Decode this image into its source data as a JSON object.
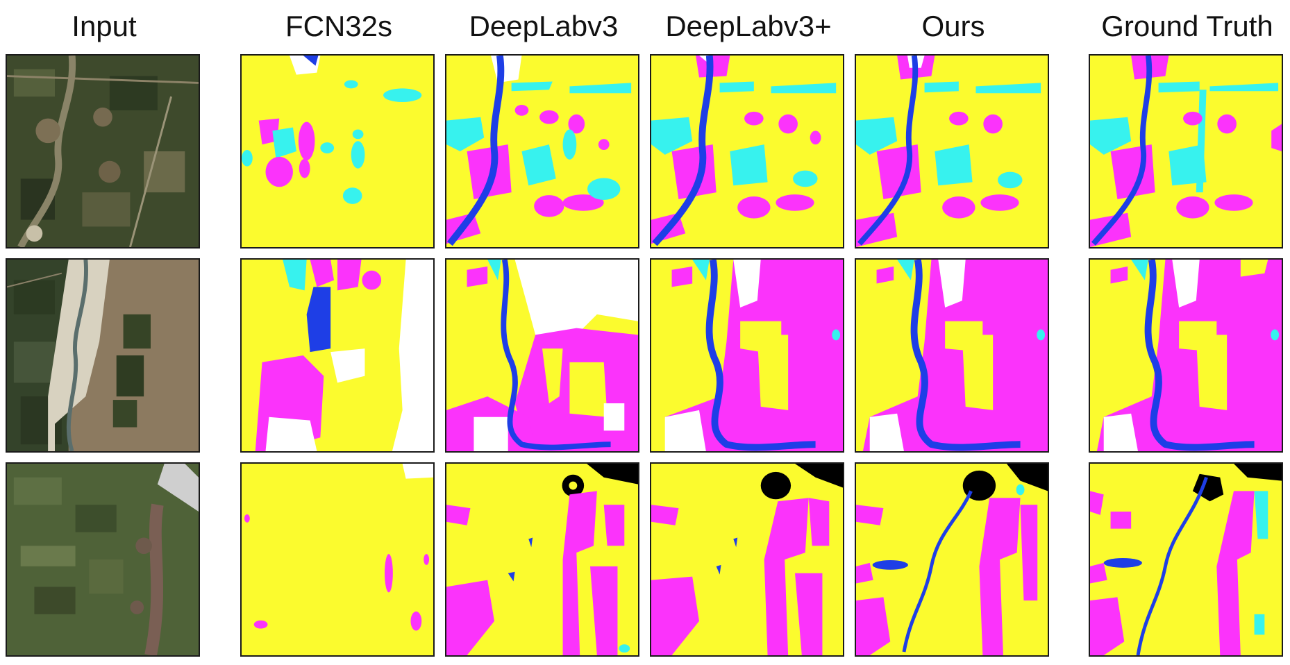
{
  "columns": [
    {
      "title": "Input"
    },
    {
      "title": "FCN32s"
    },
    {
      "title": "DeepLabv3"
    },
    {
      "title": "DeepLabv3+"
    },
    {
      "title": "Ours"
    },
    {
      "title": "Ground Truth"
    }
  ],
  "legend_colors": {
    "background_class": "#fbfb2e",
    "class_magenta": "#fb33fb",
    "class_cyan": "#37f2ee",
    "class_blue": "#1e3ee6",
    "class_white": "#ffffff",
    "class_black": "#000000"
  },
  "rows": 3
}
